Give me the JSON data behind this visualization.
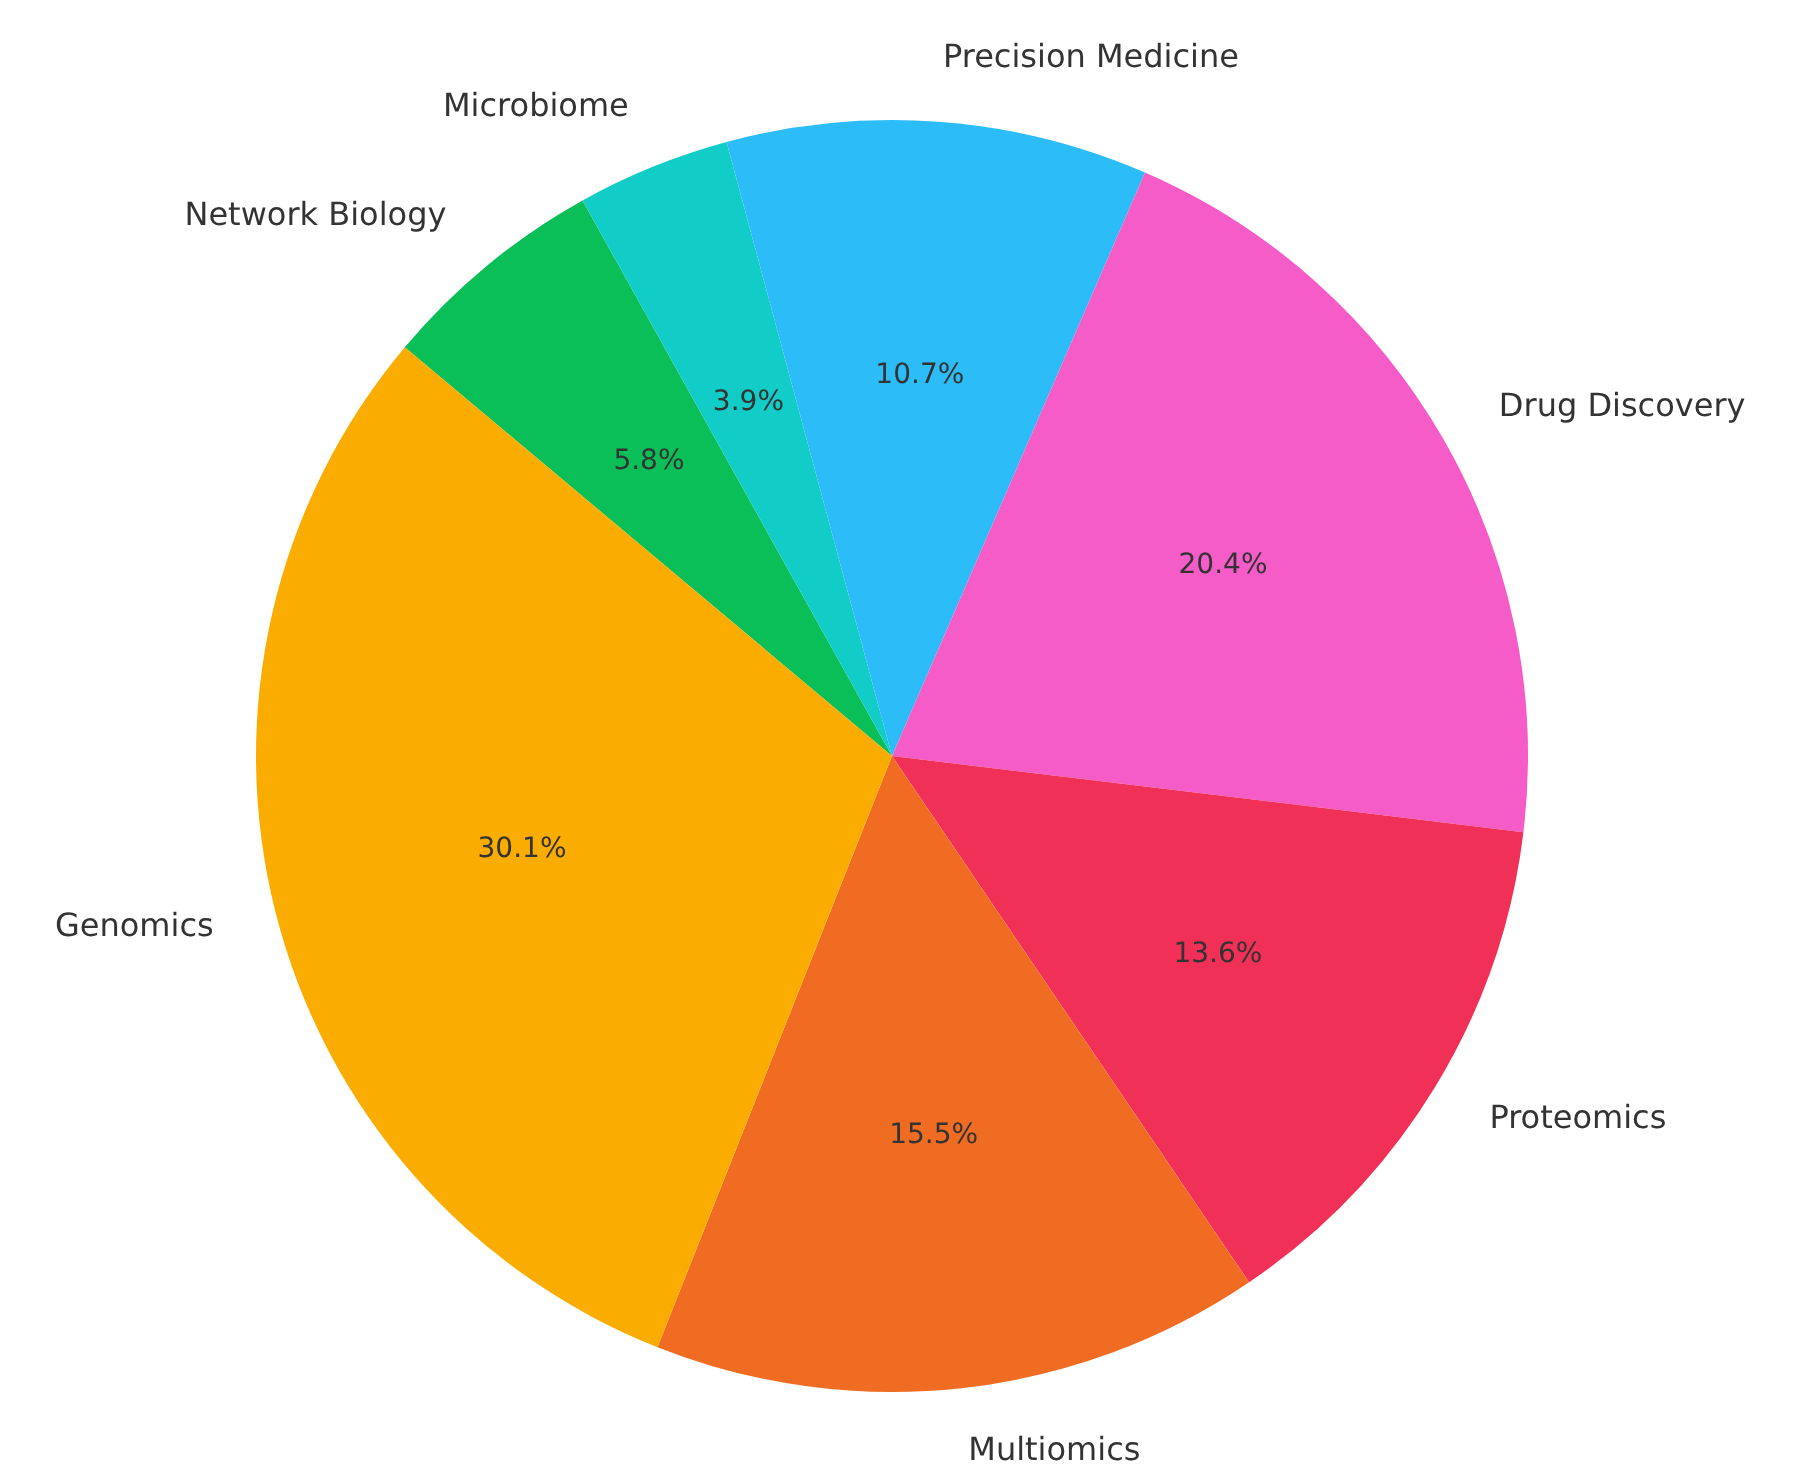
{
  "chart_data": {
    "type": "pie",
    "categories": [
      "Genomics",
      "Multiomics",
      "Proteomics",
      "Drug Discovery",
      "Precision Medicine",
      "Microbiome",
      "Network Biology"
    ],
    "values": [
      30.1,
      15.5,
      13.6,
      20.4,
      10.7,
      3.9,
      5.8
    ],
    "colors": [
      "#fbac00",
      "#f06c22",
      "#f03057",
      "#f55cc8",
      "#2cbcf8",
      "#12ccc8",
      "#0abf57"
    ],
    "value_labels": [
      "30.1%",
      "15.5%",
      "13.6%",
      "20.4%",
      "10.7%",
      "3.9%",
      "5.8%"
    ],
    "legend": false
  }
}
